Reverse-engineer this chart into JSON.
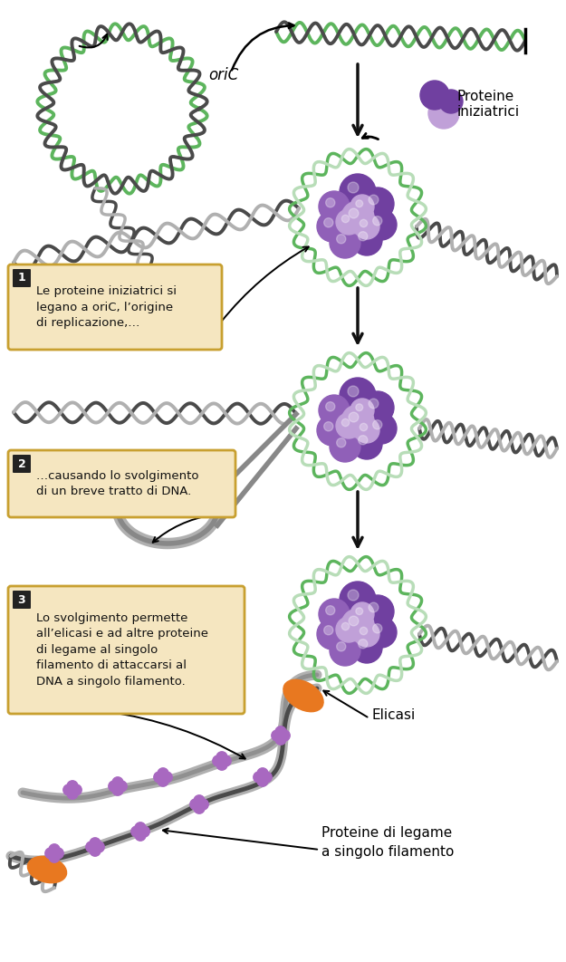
{
  "bg_color": "#ffffff",
  "dna_green": "#5db55d",
  "dna_green_light": "#b8ddb8",
  "dna_gray_dark": "#4a4a4a",
  "dna_gray_light": "#b0b0b0",
  "protein_purple_dark": "#7040a0",
  "protein_purple_light": "#c0a0d8",
  "protein_purple_mid": "#9060b8",
  "orange": "#e87820",
  "ssb_purple": "#a868c0",
  "arrow_color": "#111111",
  "box_bg": "#f5e6c0",
  "box_border": "#c8a030",
  "box_number_bg": "#222222",
  "box_number_fg": "#ffffff",
  "label1": "Le proteine iniziatrici si\nlegano a oriC, l’origine\ndi replicazione,…",
  "label2": "…causando lo svolgimento\ndi un breve tratto di DNA.",
  "label3": "Lo svolgimento permette\nall’elicasi e ad altre proteine\ndi legame al singolo\nfilamento di attaccarsi al\nDNA a singolo filamento.",
  "label_proteine": "Proteine\niniziatrici",
  "label_elicasi": "Elicasi",
  "label_ssb": "Proteine di legame\na singolo filamento",
  "label_oric": "oriC"
}
